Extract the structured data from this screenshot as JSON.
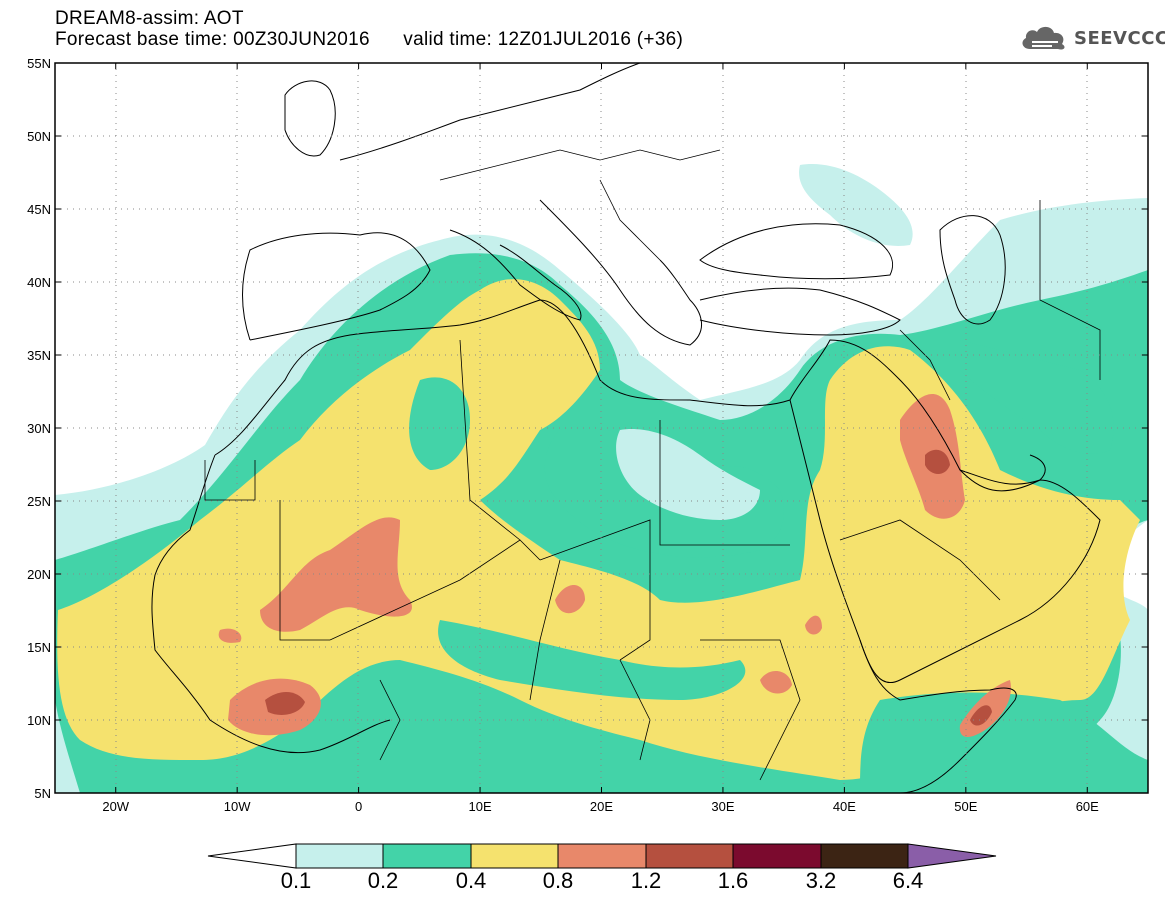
{
  "header": {
    "title_line1": "DREAM8-assim: AOT",
    "title_line2": "Forecast base time: 00Z30JUN2016      valid time: 12Z01JUL2016 (+36)"
  },
  "logo": {
    "text": "SEEVCCC",
    "icon": "cloud-icon"
  },
  "map": {
    "lat_ticks": [
      "55N",
      "50N",
      "45N",
      "40N",
      "35N",
      "30N",
      "25N",
      "20N",
      "15N",
      "10N",
      "5N"
    ],
    "lon_ticks": [
      "20W",
      "10W",
      "0",
      "10E",
      "20E",
      "30E",
      "40E",
      "50E",
      "60E"
    ],
    "lat_range": [
      5,
      55
    ],
    "lon_range": [
      -25,
      65
    ],
    "gridlines": "dotted"
  },
  "colorbar": {
    "labels": [
      "0.1",
      "0.2",
      "0.4",
      "0.8",
      "1.2",
      "1.6",
      "3.2",
      "6.4"
    ],
    "colors": [
      "#ffffff",
      "#c6f0ec",
      "#43d3a8",
      "#f5e26e",
      "#e8886a",
      "#b5503f",
      "#7b0a2e",
      "#3c2414",
      "#8a5ea8"
    ]
  },
  "legend_colors": {
    "lt01": "#ffffff",
    "c1": "#c6f0ec",
    "c2": "#43d3a8",
    "c3": "#f5e26e",
    "c4": "#e8886a",
    "c5": "#b5503f",
    "c6": "#7b0a2e",
    "c7": "#3c2414"
  }
}
